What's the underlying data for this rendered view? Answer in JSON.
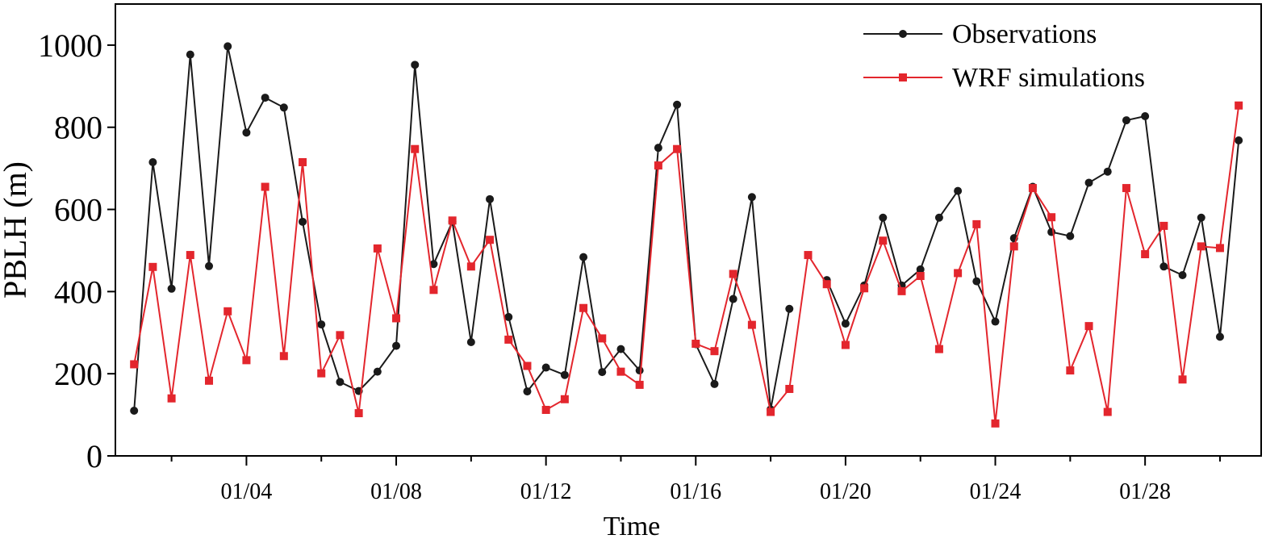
{
  "chart_data": {
    "type": "line",
    "xlabel": "Time",
    "ylabel": "PBLH (m)",
    "ylim": [
      0,
      1100
    ],
    "xlim": [
      0,
      30.6
    ],
    "yticks": [
      0,
      200,
      400,
      600,
      800,
      1000
    ],
    "xticks": [
      {
        "x": 3.5,
        "label": "01/04"
      },
      {
        "x": 7.5,
        "label": "01/08"
      },
      {
        "x": 11.5,
        "label": "01/12"
      },
      {
        "x": 15.5,
        "label": "01/16"
      },
      {
        "x": 19.5,
        "label": "01/20"
      },
      {
        "x": 23.5,
        "label": "01/24"
      },
      {
        "x": 27.5,
        "label": "01/28"
      }
    ],
    "legend_position": "top-right",
    "grid": false,
    "x": [
      0.5,
      1.0,
      1.5,
      2.0,
      2.5,
      3.0,
      3.5,
      4.0,
      4.5,
      5.0,
      5.5,
      6.0,
      6.5,
      7.0,
      7.5,
      8.0,
      8.5,
      9.0,
      9.5,
      10.0,
      10.5,
      11.0,
      11.5,
      12.0,
      12.5,
      13.0,
      13.5,
      14.0,
      14.5,
      15.0,
      15.5,
      16.0,
      16.5,
      17.0,
      17.5,
      18.0,
      18.5,
      19.0,
      19.5,
      20.0,
      20.5,
      21.0,
      21.5,
      22.0,
      22.5,
      23.0,
      23.5,
      24.0,
      24.5,
      25.0,
      25.5,
      26.0,
      26.5,
      27.0,
      27.5,
      28.0,
      28.5,
      29.0,
      29.5,
      30.0,
      30.5
    ],
    "series": [
      {
        "name": "Observations",
        "color": "#1a1a1a",
        "marker": "circle",
        "values": [
          110,
          715,
          407,
          977,
          462,
          997,
          787,
          872,
          848,
          570,
          320,
          180,
          158,
          205,
          268,
          952,
          467,
          570,
          277,
          625,
          338,
          157,
          215,
          197,
          484,
          204,
          260,
          208,
          750,
          855,
          272,
          175,
          382,
          630,
          113,
          358,
          null,
          428,
          322,
          415,
          580,
          415,
          454,
          580,
          645,
          425,
          327,
          530,
          655,
          545,
          535,
          665,
          692,
          817,
          827,
          461,
          440,
          580,
          290,
          768,
          null
        ]
      },
      {
        "name": "WRF simulations",
        "color": "#e3262d",
        "marker": "square",
        "values": [
          223,
          460,
          140,
          489,
          183,
          352,
          233,
          655,
          243,
          715,
          201,
          294,
          104,
          505,
          335,
          747,
          404,
          573,
          461,
          526,
          283,
          219,
          112,
          138,
          360,
          286,
          205,
          173,
          707,
          747,
          273,
          255,
          443,
          319,
          107,
          163,
          489,
          418,
          270,
          408,
          524,
          401,
          438,
          260,
          445,
          564,
          79,
          510,
          652,
          581,
          208,
          316,
          107,
          652,
          491,
          560,
          186,
          510,
          506,
          853,
          null
        ]
      }
    ]
  }
}
